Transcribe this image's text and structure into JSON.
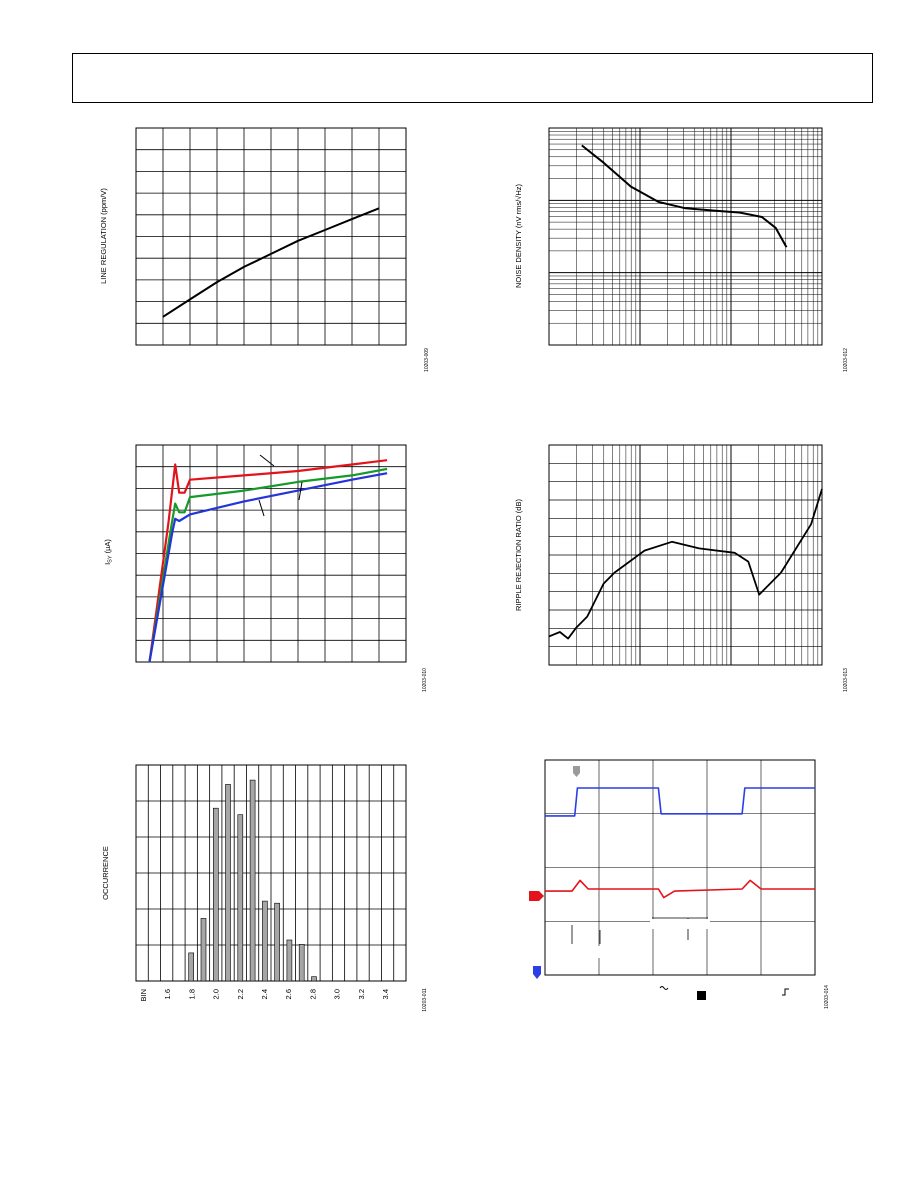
{
  "chart_data": [
    {
      "id": "line_regulation",
      "type": "line",
      "ylabel": "LINE REGULATION (ppm/V)",
      "figure_id": "10203-009",
      "grid": true,
      "series": [
        {
          "color": "#000000",
          "points": [
            [
              0.1,
              0.13
            ],
            [
              0.2,
              0.21
            ],
            [
              0.3,
              0.29
            ],
            [
              0.4,
              0.36
            ],
            [
              0.5,
              0.42
            ],
            [
              0.6,
              0.48
            ],
            [
              0.7,
              0.53
            ],
            [
              0.8,
              0.58
            ],
            [
              0.9,
              0.63
            ]
          ]
        }
      ]
    },
    {
      "id": "noise_density",
      "type": "line",
      "ylabel": "NOISE DENSITY (nV rms/√Hz)",
      "figure_id": "10203-012",
      "xscale": "log",
      "yscale": "log",
      "grid": true,
      "series": [
        {
          "color": "#000000",
          "points": [
            [
              0.12,
              0.92
            ],
            [
              0.2,
              0.84
            ],
            [
              0.3,
              0.73
            ],
            [
              0.4,
              0.66
            ],
            [
              0.5,
              0.63
            ],
            [
              0.6,
              0.62
            ],
            [
              0.7,
              0.61
            ],
            [
              0.78,
              0.59
            ],
            [
              0.83,
              0.54
            ],
            [
              0.87,
              0.45
            ]
          ]
        }
      ]
    },
    {
      "id": "supply_current",
      "type": "line",
      "ylabel": "I_SY (µA)",
      "figure_id": "10203-010",
      "grid": true,
      "series": [
        {
          "color": "#e3131b",
          "points": [
            [
              0.05,
              0.0
            ],
            [
              0.12,
              0.64
            ],
            [
              0.145,
              0.91
            ],
            [
              0.16,
              0.78
            ],
            [
              0.18,
              0.78
            ],
            [
              0.2,
              0.84
            ],
            [
              0.4,
              0.86
            ],
            [
              0.6,
              0.88
            ],
            [
              0.8,
              0.91
            ],
            [
              0.93,
              0.93
            ]
          ]
        },
        {
          "color": "#159a2a",
          "points": [
            [
              0.05,
              0.0
            ],
            [
              0.13,
              0.62
            ],
            [
              0.145,
              0.73
            ],
            [
              0.16,
              0.69
            ],
            [
              0.18,
              0.69
            ],
            [
              0.2,
              0.76
            ],
            [
              0.4,
              0.79
            ],
            [
              0.6,
              0.83
            ],
            [
              0.8,
              0.86
            ],
            [
              0.93,
              0.89
            ]
          ]
        },
        {
          "color": "#2434d8",
          "points": [
            [
              0.05,
              0.0
            ],
            [
              0.135,
              0.6
            ],
            [
              0.145,
              0.66
            ],
            [
              0.16,
              0.65
            ],
            [
              0.2,
              0.68
            ],
            [
              0.4,
              0.74
            ],
            [
              0.6,
              0.79
            ],
            [
              0.8,
              0.84
            ],
            [
              0.93,
              0.87
            ]
          ]
        }
      ]
    },
    {
      "id": "ripple_rejection",
      "type": "line",
      "ylabel": "RIPPLE REJECTION RATIO (dB)",
      "figure_id": "10203-013",
      "xscale": "log",
      "grid": true,
      "series": [
        {
          "color": "#000000",
          "points": [
            [
              0.0,
              0.13
            ],
            [
              0.04,
              0.15
            ],
            [
              0.07,
              0.12
            ],
            [
              0.1,
              0.17
            ],
            [
              0.14,
              0.22
            ],
            [
              0.16,
              0.27
            ],
            [
              0.2,
              0.37
            ],
            [
              0.24,
              0.42
            ],
            [
              0.35,
              0.52
            ],
            [
              0.45,
              0.56
            ],
            [
              0.55,
              0.53
            ],
            [
              0.68,
              0.51
            ],
            [
              0.73,
              0.47
            ],
            [
              0.77,
              0.32
            ],
            [
              0.85,
              0.42
            ],
            [
              0.96,
              0.64
            ],
            [
              1.0,
              0.8
            ]
          ]
        }
      ]
    },
    {
      "id": "output_voltage_histogram",
      "type": "bar",
      "ylabel": "OCCURRENCE",
      "figure_id": "10203-011",
      "grid": true,
      "categories": [
        "BIN",
        "1.6",
        "1.8",
        "2.0",
        "2.2",
        "2.4",
        "2.6",
        "2.8",
        "3.0",
        "3.2",
        "3.4"
      ],
      "bins": [
        1.8,
        1.9,
        2.0,
        2.1,
        2.2,
        2.3,
        2.4,
        2.5,
        2.6,
        2.7,
        2.8
      ],
      "values": [
        13,
        29,
        80,
        91,
        77,
        93,
        37,
        36,
        19,
        17,
        2
      ],
      "ylim": [
        0,
        100
      ]
    },
    {
      "id": "transient_response",
      "type": "line",
      "figure_id": "10203-014",
      "grid": true,
      "series": [
        {
          "color": "#2b3fe6",
          "name_hidden": "ch1",
          "points": [
            [
              0.0,
              0.74
            ],
            [
              0.11,
              0.74
            ],
            [
              0.12,
              0.87
            ],
            [
              0.42,
              0.87
            ],
            [
              0.43,
              0.75
            ],
            [
              0.73,
              0.75
            ],
            [
              0.74,
              0.87
            ],
            [
              1.0,
              0.87
            ]
          ]
        },
        {
          "color": "#e3131b",
          "name_hidden": "ch2",
          "points": [
            [
              0.0,
              0.39
            ],
            [
              0.1,
              0.39
            ],
            [
              0.13,
              0.44
            ],
            [
              0.16,
              0.4
            ],
            [
              0.42,
              0.4
            ],
            [
              0.44,
              0.36
            ],
            [
              0.48,
              0.39
            ],
            [
              0.73,
              0.4
            ],
            [
              0.76,
              0.44
            ],
            [
              0.8,
              0.4
            ],
            [
              1.0,
              0.4
            ]
          ]
        }
      ]
    }
  ]
}
